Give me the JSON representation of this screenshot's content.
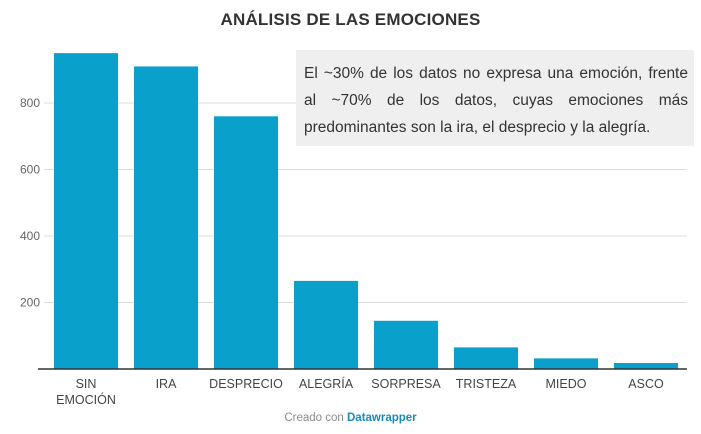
{
  "title": "ANÁLISIS DE LAS EMOCIONES",
  "annotation": "El ~30% de los datos no expresa una emoción, frente al ~70% de los datos, cuyas emociones más predominantes son la ira, el desprecio y la alegría.",
  "footer": {
    "prefix": "Creado con",
    "brand": "Datawrapper"
  },
  "colors": {
    "bar": "#0aa0cc",
    "grid": "#dddddd",
    "axis": "#333333",
    "text": "#444444",
    "annotation_bg": "#efefef"
  },
  "chart_data": {
    "type": "bar",
    "title": "ANÁLISIS DE LAS EMOCIONES",
    "xlabel": "",
    "ylabel": "",
    "categories": [
      [
        "SIN",
        "EMOCIÓN"
      ],
      [
        "IRA"
      ],
      [
        "DESPRECIO"
      ],
      [
        "ALEGRÍA"
      ],
      [
        "SORPRESA"
      ],
      [
        "TRISTEZA"
      ],
      [
        "MIEDO"
      ],
      [
        "ASCO"
      ]
    ],
    "values": [
      950,
      910,
      760,
      265,
      145,
      65,
      32,
      18
    ],
    "ylim": [
      0,
      950
    ],
    "yticks": [
      200,
      400,
      600,
      800
    ],
    "grid": true,
    "legend": "none"
  }
}
